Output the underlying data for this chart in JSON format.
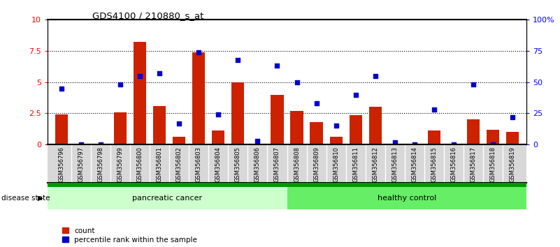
{
  "title": "GDS4100 / 210880_s_at",
  "samples": [
    "GSM356796",
    "GSM356797",
    "GSM356798",
    "GSM356799",
    "GSM356800",
    "GSM356801",
    "GSM356802",
    "GSM356803",
    "GSM356804",
    "GSM356805",
    "GSM356806",
    "GSM356807",
    "GSM356808",
    "GSM356809",
    "GSM356810",
    "GSM356811",
    "GSM356812",
    "GSM356813",
    "GSM356814",
    "GSM356815",
    "GSM356816",
    "GSM356817",
    "GSM356818",
    "GSM356819"
  ],
  "count": [
    2.4,
    0.0,
    0.0,
    2.6,
    8.2,
    3.1,
    0.6,
    7.4,
    1.1,
    5.0,
    0.05,
    4.0,
    2.7,
    1.8,
    0.6,
    2.35,
    3.0,
    0.0,
    0.0,
    1.1,
    0.0,
    2.0,
    1.2,
    1.0
  ],
  "percentile": [
    45,
    0,
    0,
    48,
    55,
    57,
    17,
    74,
    24,
    68,
    3,
    63,
    50,
    33,
    15,
    40,
    55,
    2,
    0,
    28,
    0,
    48,
    0,
    22
  ],
  "group_labels": [
    "pancreatic cancer",
    "healthy control"
  ],
  "bar_color": "#cc2200",
  "dot_color": "#0000cc",
  "ylim_left": [
    0,
    10
  ],
  "ylim_right": [
    0,
    100
  ],
  "yticks_left": [
    0,
    2.5,
    5.0,
    7.5,
    10
  ],
  "ytick_labels_left": [
    "0",
    "2.5",
    "5",
    "7.5",
    "10"
  ],
  "yticks_right": [
    0,
    25,
    50,
    75,
    100
  ],
  "ytick_labels_right": [
    "0",
    "25",
    "50",
    "75",
    "100%"
  ],
  "legend_labels": [
    "count",
    "percentile rank within the sample"
  ],
  "disease_state_label": "disease state",
  "pc_color": "#ccffcc",
  "hc_color": "#66ee66",
  "sep_color": "#009900",
  "xtick_bg": "#d8d8d8"
}
